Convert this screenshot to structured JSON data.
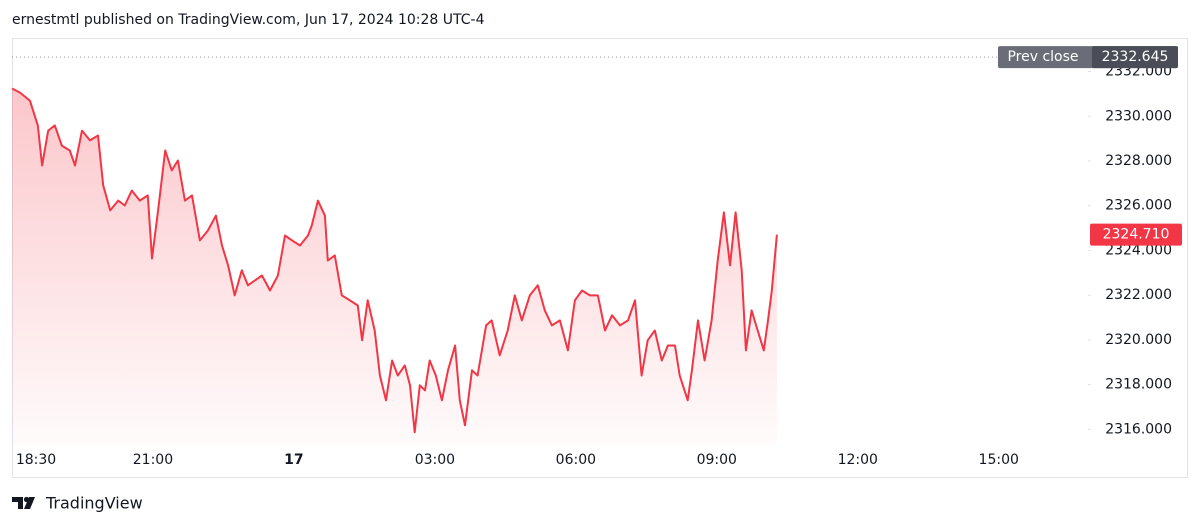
{
  "header": {
    "text": "ernestmtl published on TradingView.com, Jun 17, 2024 10:28 UTC-4"
  },
  "footer": {
    "brand": "TradingView"
  },
  "chart_data": {
    "type": "area-line",
    "grid": false,
    "color": "#f23645",
    "xlim": [
      -6,
      16.9
    ],
    "ylim": [
      2315.3,
      2333.5
    ],
    "xticks": [
      {
        "value": -5.5,
        "label": "18:30"
      },
      {
        "value": -3,
        "label": "21:00"
      },
      {
        "value": 0,
        "label": "17"
      },
      {
        "value": 3,
        "label": "03:00"
      },
      {
        "value": 6,
        "label": "06:00"
      },
      {
        "value": 9,
        "label": "09:00"
      },
      {
        "value": 12,
        "label": "12:00"
      },
      {
        "value": 15,
        "label": "15:00"
      }
    ],
    "yticks": [
      {
        "value": 2316,
        "label": "2316.000"
      },
      {
        "value": 2318,
        "label": "2318.000"
      },
      {
        "value": 2320,
        "label": "2320.000"
      },
      {
        "value": 2322,
        "label": "2322.000"
      },
      {
        "value": 2324,
        "label": "2324.000"
      },
      {
        "value": 2326,
        "label": "2326.000"
      },
      {
        "value": 2328,
        "label": "2328.000"
      },
      {
        "value": 2330,
        "label": "2330.000"
      },
      {
        "value": 2332,
        "label": "2332.000"
      }
    ],
    "prev_close": {
      "name": "Prev close",
      "value": 2332.645,
      "label": "2332.645"
    },
    "last_price": {
      "value": 2324.71,
      "label": "2324.710"
    },
    "x": [
      -6.0,
      -5.83,
      -5.62,
      -5.45,
      -5.36,
      -5.23,
      -5.09,
      -4.94,
      -4.77,
      -4.66,
      -4.51,
      -4.34,
      -4.17,
      -4.06,
      -3.91,
      -3.74,
      -3.6,
      -3.45,
      -3.28,
      -3.11,
      -3.02,
      -2.89,
      -2.74,
      -2.6,
      -2.47,
      -2.32,
      -2.17,
      -2.0,
      -1.83,
      -1.66,
      -1.53,
      -1.4,
      -1.26,
      -1.11,
      -0.98,
      -0.83,
      -0.68,
      -0.51,
      -0.34,
      -0.19,
      -0.04,
      0.13,
      0.3,
      0.38,
      0.51,
      0.66,
      0.72,
      0.87,
      1.02,
      1.19,
      1.36,
      1.45,
      1.57,
      1.72,
      1.83,
      1.96,
      2.09,
      2.21,
      2.36,
      2.47,
      2.57,
      2.68,
      2.79,
      2.89,
      3.02,
      3.15,
      3.28,
      3.43,
      3.53,
      3.64,
      3.79,
      3.91,
      4.09,
      4.21,
      4.38,
      4.55,
      4.7,
      4.85,
      5.02,
      5.19,
      5.34,
      5.49,
      5.66,
      5.83,
      5.98,
      6.13,
      6.3,
      6.47,
      6.62,
      6.77,
      6.94,
      7.11,
      7.26,
      7.4,
      7.53,
      7.68,
      7.83,
      7.96,
      8.11,
      8.21,
      8.38,
      8.47,
      8.6,
      8.74,
      8.89,
      9.02,
      9.15,
      9.28,
      9.4,
      9.53,
      9.62,
      9.74,
      9.87,
      10.0,
      10.09,
      10.17,
      10.28
    ],
    "series": [
      {
        "values": [
          2331.24,
          2331.06,
          2330.7,
          2329.59,
          2327.8,
          2329.36,
          2329.59,
          2328.69,
          2328.47,
          2327.8,
          2329.36,
          2328.92,
          2329.14,
          2326.91,
          2325.79,
          2326.23,
          2326.01,
          2326.68,
          2326.23,
          2326.46,
          2323.64,
          2325.79,
          2328.47,
          2327.58,
          2328.02,
          2326.23,
          2326.46,
          2324.45,
          2324.89,
          2325.56,
          2324.22,
          2323.33,
          2321.99,
          2323.11,
          2322.44,
          2322.66,
          2322.88,
          2322.21,
          2322.88,
          2324.67,
          2324.45,
          2324.22,
          2324.67,
          2325.12,
          2326.23,
          2325.56,
          2323.55,
          2323.78,
          2321.99,
          2321.77,
          2321.54,
          2319.98,
          2321.77,
          2320.42,
          2318.41,
          2317.3,
          2319.08,
          2318.41,
          2318.86,
          2317.97,
          2315.87,
          2317.97,
          2317.74,
          2319.08,
          2318.41,
          2317.3,
          2318.64,
          2319.75,
          2317.3,
          2316.18,
          2318.64,
          2318.41,
          2320.65,
          2320.87,
          2319.31,
          2320.42,
          2321.99,
          2320.87,
          2321.99,
          2322.44,
          2321.32,
          2320.65,
          2320.87,
          2319.53,
          2321.77,
          2322.21,
          2321.99,
          2321.99,
          2320.42,
          2321.1,
          2320.65,
          2320.87,
          2321.77,
          2318.41,
          2319.98,
          2320.42,
          2319.08,
          2319.75,
          2319.75,
          2318.41,
          2317.3,
          2318.64,
          2320.87,
          2319.08,
          2320.87,
          2323.55,
          2325.7,
          2323.33,
          2325.7,
          2323.11,
          2319.53,
          2321.32,
          2320.42,
          2319.53,
          2320.87,
          2322.21,
          2324.71
        ]
      }
    ]
  }
}
